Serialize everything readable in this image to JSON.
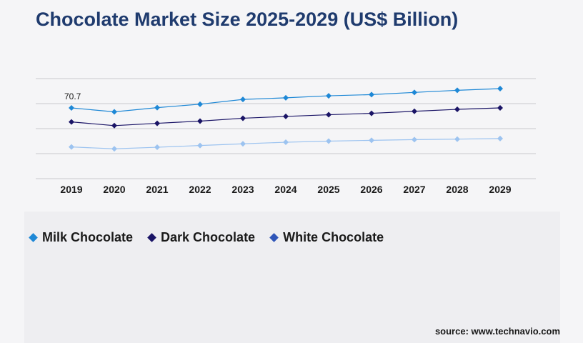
{
  "title": "Chocolate Market Size 2025-2029 (US$ Billion)",
  "source": "source: www.technavio.com",
  "chart_data": {
    "type": "line",
    "title": "Chocolate Market Size 2025-2029 (US$ Billion)",
    "x": [
      "2019",
      "2020",
      "2021",
      "2022",
      "2023",
      "2024",
      "2025",
      "2026",
      "2027",
      "2028",
      "2029"
    ],
    "ylim": [
      0,
      100
    ],
    "grid": true,
    "legend_position": "bottom-left",
    "annotations": [
      {
        "text": "70.7",
        "series": 0,
        "index": 0
      }
    ],
    "series": [
      {
        "name": "Milk Chocolate",
        "color": "#1e88d6",
        "values": [
          70.7,
          66.8,
          71.0,
          74.4,
          79.2,
          80.8,
          82.8,
          84.0,
          86.2,
          88.3,
          90.0
        ]
      },
      {
        "name": "Dark Chocolate",
        "color": "#1a1466",
        "values": [
          56.7,
          53.0,
          55.3,
          57.5,
          60.4,
          62.2,
          63.9,
          65.3,
          67.3,
          69.3,
          70.7
        ]
      },
      {
        "name": "White Chocolate",
        "color": "#9cc3f0",
        "values": [
          31.7,
          29.8,
          31.4,
          33.1,
          34.8,
          36.4,
          37.5,
          38.3,
          39.0,
          39.5,
          40.1
        ]
      }
    ]
  },
  "legend": [
    {
      "label": "Milk Chocolate",
      "color": "#1e88d6"
    },
    {
      "label": "Dark Chocolate",
      "color": "#1a1466"
    },
    {
      "label": "White Chocolate",
      "color": "#2f55b8"
    }
  ]
}
